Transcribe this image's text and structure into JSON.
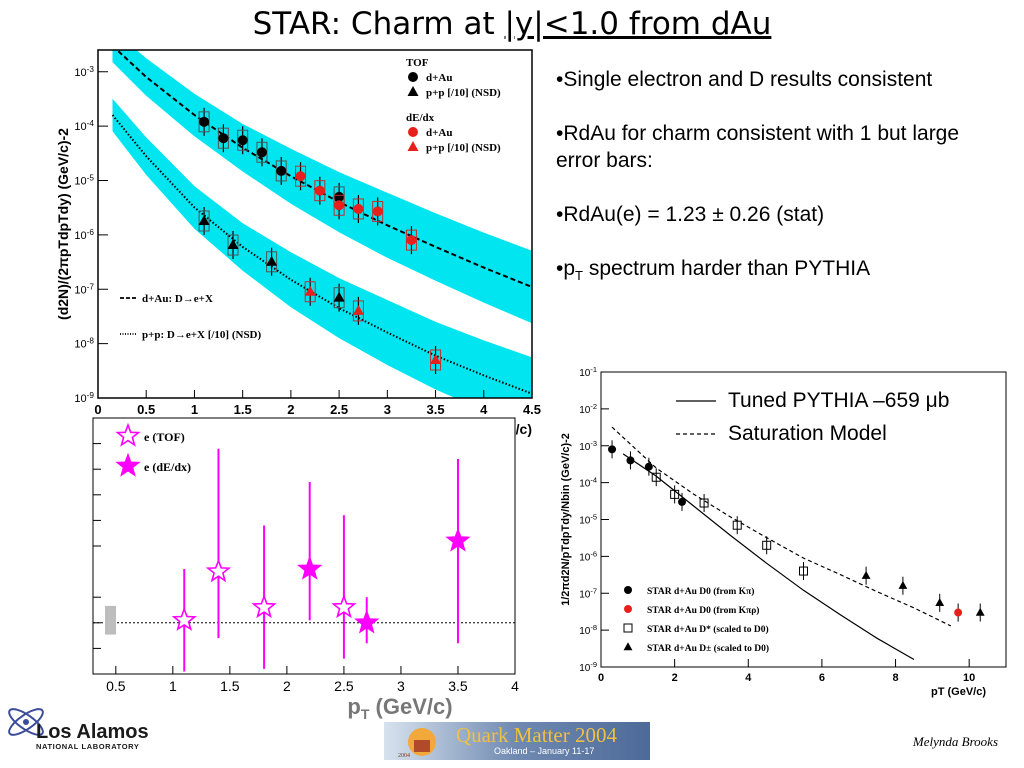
{
  "title": {
    "prefix": "STAR: Charm at ",
    "underlined": "|y|<1.0 from dAu"
  },
  "bullets": [
    "•Single electron and D results consistent",
    "•RdAu for charm consistent with 1 but large error bars:",
    "•RdAu(e) = 1.23 ± 0.26 (stat)",
    "•pT spectrum harder than PYTHIA"
  ],
  "right_legend": {
    "pythia": "Tuned PYTHIA –659 μb",
    "saturation": "Saturation Model"
  },
  "footer": {
    "lanl_line1": "Los Alamos",
    "lanl_line2": "NATIONAL LABORATORY",
    "qm_title": "Quark Matter 2004",
    "qm_subtitle": "Oakland – January 11-17",
    "qm_year": "2004",
    "author": "Melynda Brooks"
  },
  "colors": {
    "band": "#00e5ef",
    "red": "#e8201c",
    "magenta": "#ff00ff",
    "black": "#000000"
  },
  "chart_data": [
    {
      "id": "spectra",
      "type": "scatter",
      "xlabel": "pT (GeV/c)",
      "ylabel": "(d2N)/(2πpTdpTdy) (GeV/c)-2",
      "xlim": [
        0,
        4.5
      ],
      "ylim_log10": [
        -9,
        -2.6
      ],
      "xticks": [
        0,
        0.5,
        1,
        1.5,
        2,
        2.5,
        3,
        3.5,
        4,
        4.5
      ],
      "xtick_labels": [
        "0",
        "0.5",
        "1",
        "1.5",
        "2",
        "2.5",
        "3",
        "3.5",
        "4",
        "4.5"
      ],
      "ytick_labels": [
        "10-9",
        "10-8",
        "10-7",
        "10-6",
        "10-5",
        "10-4",
        "10-3"
      ],
      "legend_top": [
        {
          "text": "TOF",
          "marker": "none"
        },
        {
          "text": "d+Au",
          "marker": "circle",
          "color": "#000000"
        },
        {
          "text": "p+p [/10] (NSD)",
          "marker": "triangle",
          "color": "#000000"
        },
        {
          "text": "dE/dx",
          "marker": "none"
        },
        {
          "text": "d+Au",
          "marker": "circle",
          "color": "#e8201c"
        },
        {
          "text": "p+p [/10] (NSD)",
          "marker": "triangle",
          "color": "#e8201c"
        }
      ],
      "legend_bottom": [
        {
          "text": "d+Au: D→e+X",
          "style": "dashed"
        },
        {
          "text": "p+p: D→e+X [/10] (NSD)",
          "style": "dotted"
        }
      ],
      "series": [
        {
          "marker": "circle",
          "color": "#000000",
          "x": [
            1.1,
            1.3,
            1.5,
            1.7,
            1.9,
            2.5
          ],
          "y": [
            0.00012,
            6e-05,
            5.5e-05,
            3.3e-05,
            1.5e-05,
            5e-06
          ]
        },
        {
          "marker": "triangle",
          "color": "#000000",
          "x": [
            1.1,
            1.4,
            1.8,
            2.5
          ],
          "y": [
            1.8e-06,
            6.5e-07,
            3.2e-07,
            7e-08
          ]
        },
        {
          "marker": "circle",
          "color": "#e8201c",
          "x": [
            2.1,
            2.3,
            2.5,
            2.7,
            2.9,
            3.25
          ],
          "y": [
            1.2e-05,
            6.5e-06,
            3.5e-06,
            3e-06,
            2.7e-06,
            8e-07
          ]
        },
        {
          "marker": "triangle",
          "color": "#e8201c",
          "x": [
            2.2,
            2.7,
            3.5
          ],
          "y": [
            9e-08,
            4e-08,
            5e-09
          ]
        }
      ],
      "curves": {
        "dau_x": [
          0.15,
          0.5,
          1.0,
          1.5,
          2.0,
          2.5,
          3.0,
          3.5,
          4.0,
          4.5
        ],
        "dau_y": [
          0.003,
          0.0008,
          0.00016,
          4e-05,
          1.2e-05,
          4e-06,
          1.5e-06,
          6e-07,
          2.5e-07,
          1.1e-07
        ],
        "pp_x": [
          0.15,
          0.5,
          1.0,
          1.5,
          2.0,
          2.5,
          3.0,
          3.5,
          4.0,
          4.5
        ],
        "pp_y": [
          0.00016,
          2.8e-05,
          3.2e-06,
          6e-07,
          1.5e-07,
          4.5e-08,
          1.6e-08,
          6e-09,
          2.6e-09,
          1.2e-09
        ]
      }
    },
    {
      "id": "rdau",
      "type": "scatter",
      "xlabel": "pT (GeV/c)",
      "xlim": [
        0.3,
        4
      ],
      "ylim": [
        0,
        5
      ],
      "xticks": [
        0.5,
        1,
        1.5,
        2,
        2.5,
        3,
        3.5,
        4
      ],
      "xtick_labels": [
        "0.5",
        "1",
        "1.5",
        "2",
        "2.5",
        "3",
        "3.5",
        "4"
      ],
      "reference_y": 1.0,
      "legend": [
        {
          "text": "e (TOF)",
          "marker": "open-star"
        },
        {
          "text": "e (dE/dx)",
          "marker": "filled-star"
        }
      ],
      "series": [
        {
          "name": "e (TOF)",
          "marker": "open-star",
          "x": [
            1.1,
            1.4,
            1.8,
            2.5
          ],
          "y": [
            1.05,
            2.0,
            1.3,
            1.3
          ],
          "err_lo": [
            1.0,
            1.3,
            1.2,
            1.0
          ],
          "err_hi": [
            1.0,
            2.4,
            1.6,
            1.8
          ]
        },
        {
          "name": "e (dE/dx)",
          "marker": "filled-star",
          "x": [
            2.2,
            2.7,
            3.5
          ],
          "y": [
            2.05,
            1.0,
            2.6
          ],
          "err_lo": [
            1.0,
            0.4,
            2.0
          ],
          "err_hi": [
            1.7,
            0.5,
            1.6
          ]
        }
      ]
    },
    {
      "id": "dmeson",
      "type": "scatter",
      "xlabel": "pT (GeV/c)",
      "ylabel": "1/2πd2N/pTdpTdy/Nbin (GeV/c)-2",
      "xlim": [
        0,
        11
      ],
      "ylim_log10": [
        -9,
        -1
      ],
      "xticks": [
        0,
        2,
        4,
        6,
        8,
        10
      ],
      "xtick_labels": [
        "0",
        "2",
        "4",
        "6",
        "8",
        "10"
      ],
      "ytick_labels": [
        "10-9",
        "10-8",
        "10-7",
        "10-6",
        "10-5",
        "10-4",
        "10-3",
        "10-2",
        "10-1"
      ],
      "legend": [
        {
          "text": "STAR d+Au D0 (from Kπ)",
          "marker": "circle",
          "color": "#000000"
        },
        {
          "text": "STAR d+Au D0 (from Kπρ)",
          "marker": "circle",
          "color": "#e8201c"
        },
        {
          "text": "STAR d+Au D* (scaled to D0)",
          "marker": "open-square",
          "color": "#000000"
        },
        {
          "text": "STAR d+Au D± (scaled to D0)",
          "marker": "triangle",
          "color": "#000000"
        }
      ],
      "series": [
        {
          "marker": "circle",
          "color": "#000000",
          "x": [
            0.3,
            0.8,
            1.3,
            2.2
          ],
          "y": [
            0.0008,
            0.0004,
            0.00027,
            3e-05
          ]
        },
        {
          "marker": "circle",
          "color": "#e8201c",
          "x": [
            9.7
          ],
          "y": [
            3e-08
          ]
        },
        {
          "marker": "open-square",
          "color": "#000000",
          "x": [
            1.5,
            2.0,
            2.8,
            3.7,
            4.5,
            5.5
          ],
          "y": [
            0.00014,
            4.8e-05,
            2.8e-05,
            7e-06,
            2e-06,
            4e-07
          ]
        },
        {
          "marker": "triangle",
          "color": "#000000",
          "x": [
            7.2,
            8.2,
            9.2,
            10.3
          ],
          "y": [
            3e-07,
            1.6e-07,
            5.5e-08,
            3e-08
          ]
        }
      ],
      "curves": {
        "pythia_x": [
          0.6,
          1.5,
          2.5,
          3.5,
          4.5,
          5.5,
          6.5,
          7.5,
          8.5
        ],
        "pythia_y": [
          0.0006,
          0.00015,
          2.4e-05,
          3.8e-06,
          6.5e-07,
          1.2e-07,
          2.6e-08,
          6e-09,
          1.6e-09
        ],
        "sat_x": [
          0.3,
          1.5,
          2.5,
          3.5,
          4.5,
          5.5,
          6.5,
          7.5,
          8.5,
          9.5
        ],
        "sat_y": [
          0.0032,
          0.00025,
          5e-05,
          1.2e-05,
          3.2e-06,
          9e-07,
          3.2e-07,
          1.1e-07,
          4e-08,
          1.3e-08
        ]
      }
    }
  ]
}
